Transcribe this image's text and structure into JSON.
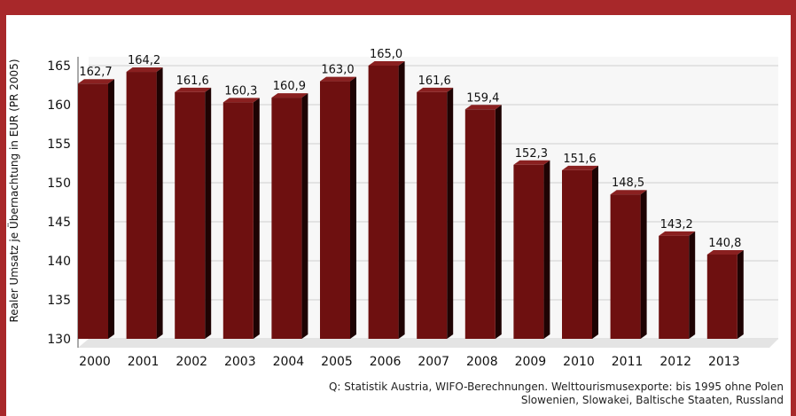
{
  "chart_data": {
    "type": "bar",
    "title": "",
    "ylabel": "Realer Umsatz je Übernachtung in EUR (PR 2005)",
    "xlabel": "",
    "ylim": [
      130,
      165
    ],
    "yticks": [
      130,
      135,
      140,
      145,
      150,
      155,
      160,
      165
    ],
    "grid": true,
    "categories": [
      "2000",
      "2001",
      "2002",
      "2003",
      "2004",
      "2005",
      "2006",
      "2007",
      "2008",
      "2009",
      "2010",
      "2011",
      "2012",
      "2013"
    ],
    "values": [
      162.7,
      164.2,
      161.6,
      160.3,
      160.9,
      163.0,
      165.0,
      161.6,
      159.4,
      152.3,
      151.6,
      148.5,
      143.2,
      140.8
    ],
    "labels": [
      "162,7",
      "164,2",
      "161,6",
      "160,3",
      "160,9",
      "163,0",
      "165,0",
      "161,6",
      "159,4",
      "152,3",
      "151,6",
      "148,5",
      "143,2",
      "140,8"
    ],
    "colors": {
      "bar_front": "#6e1010",
      "bar_side": "#1e0303",
      "bar_top": "#8a2020",
      "frame": "#a8282a"
    }
  },
  "source": {
    "line1": "Q: Statistik Austria, WIFO-Berechnungen. Welttourismusexporte: bis 1995 ohne Polen",
    "line2": "Slowenien, Slowakei, Baltische Staaten, Russland"
  }
}
